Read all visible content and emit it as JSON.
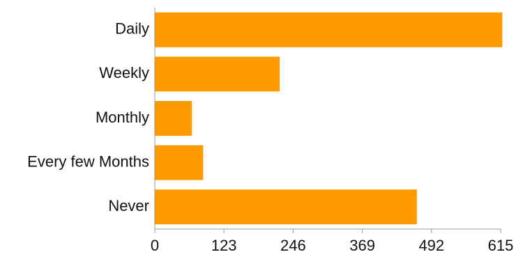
{
  "chart_data": {
    "type": "bar",
    "orientation": "horizontal",
    "categories": [
      "Daily",
      "Weekly",
      "Monthly",
      "Every few Months",
      "Never"
    ],
    "values": [
      618,
      222,
      66,
      86,
      466
    ],
    "xlim": [
      0,
      615
    ],
    "xticks": [
      "0",
      "123",
      "246",
      "369",
      "492",
      "615"
    ],
    "color": "#ff9900",
    "axis_color": "#999999",
    "grid": false
  }
}
